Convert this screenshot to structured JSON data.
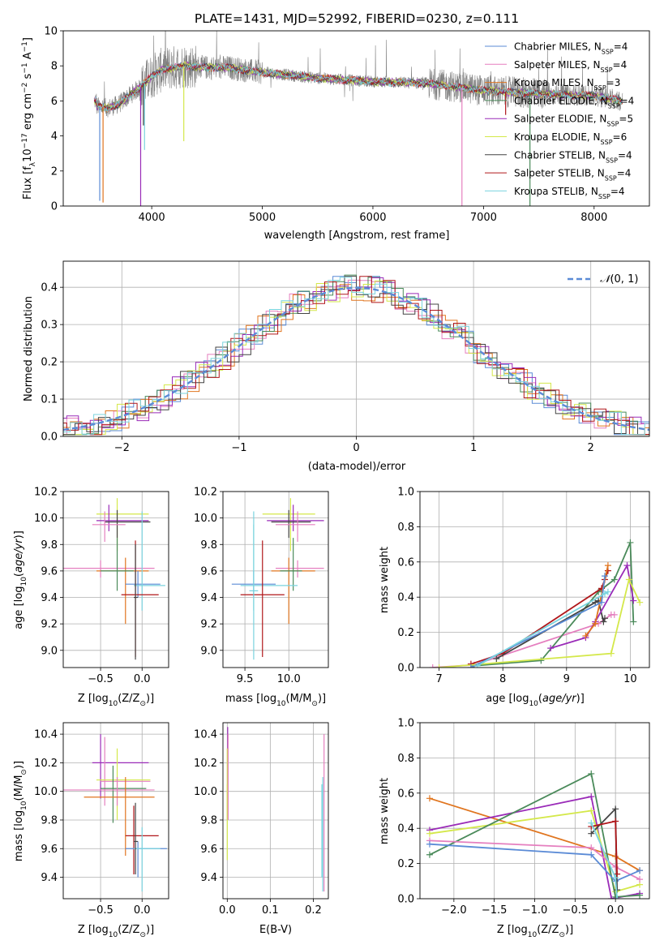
{
  "title": "PLATE=1431, MJD=52992, FIBERID=0230, z=0.111",
  "colors": {
    "chabrier_miles": "#5b8bd6",
    "salpeter_miles": "#e57fbf",
    "kroupa_miles": "#e0751f",
    "chabrier_elodie": "#4a8a5a",
    "salpeter_elodie": "#9a2bb8",
    "kroupa_elodie": "#d4e84a",
    "chabrier_stelib": "#444444",
    "salpeter_stelib": "#b0171a",
    "kroupa_stelib": "#79d3de"
  },
  "chart_data": [
    {
      "type": "line",
      "xlabel": "wavelength [Angstrom, rest frame]",
      "ylabel": "Flux [f_λ10^-17 erg cm^-2 s^-1 A^-1]",
      "xlim": [
        3200,
        8500
      ],
      "ylim": [
        0,
        10
      ],
      "xticks": [
        4000,
        5000,
        6000,
        7000,
        8000
      ],
      "yticks": [
        0,
        2,
        4,
        6,
        8,
        10
      ],
      "legend_position": "top-right",
      "legend": [
        "Chabrier MILES, NSSP=4",
        "Salpeter MILES, NSSP=4",
        "Kroupa MILES, NSSP=3",
        "Chabrier ELODIE, NSSP=4",
        "Salpeter ELODIE, NSSP=5",
        "Kroupa ELODIE, NSSP=6",
        "Chabrier STELIB, NSSP=4",
        "Salpeter STELIB, NSSP=4",
        "Kroupa STELIB, NSSP=4"
      ],
      "spectrum_continuum": {
        "x": [
          3500,
          3600,
          3700,
          3800,
          3900,
          4000,
          4100,
          4300,
          4500,
          4700,
          4900,
          5200,
          5500,
          6000,
          6500,
          7000,
          7500,
          8000,
          8250
        ],
        "y": [
          5.7,
          5.6,
          5.8,
          6.3,
          6.8,
          7.4,
          7.8,
          8.0,
          7.9,
          7.9,
          7.7,
          7.5,
          7.3,
          7.1,
          7.0,
          6.6,
          6.4,
          6.3,
          6.0
        ]
      }
    },
    {
      "type": "line",
      "xlabel": "(data-model)/error",
      "ylabel": "Normed distribution",
      "xlim": [
        -2.5,
        2.5
      ],
      "ylim": [
        0,
        0.47
      ],
      "xticks": [
        -2,
        -1,
        0,
        1,
        2
      ],
      "yticks": [
        0.0,
        0.1,
        0.2,
        0.3,
        0.4
      ],
      "legend": [
        "𝒩(0, 1)"
      ],
      "legend_position": "top-right",
      "grid": true
    },
    {
      "type": "scatter",
      "xlabel": "Z [log10(Z/Z☉)]",
      "ylabel": "age  [log10(age/yr)]",
      "xlim": [
        -0.95,
        0.32
      ],
      "ylim": [
        8.87,
        10.2
      ],
      "xticks": [
        -0.5,
        0.0
      ],
      "yticks": [
        9.0,
        9.2,
        9.4,
        9.6,
        9.8,
        10.0,
        10.2
      ],
      "grid": true
    },
    {
      "type": "scatter",
      "xlabel": "mass [log10(M/M☉)]",
      "xlim": [
        9.25,
        10.45
      ],
      "ylim": [
        8.87,
        10.2
      ],
      "xticks": [
        9.5,
        10.0
      ],
      "yticks": [
        9.0,
        9.2,
        9.4,
        9.6,
        9.8,
        10.0,
        10.2
      ],
      "grid": true
    },
    {
      "type": "line",
      "xlabel": "age  [log10(age/yr)]",
      "ylabel": "mass weight",
      "xlim": [
        6.7,
        10.3
      ],
      "ylim": [
        0,
        1
      ],
      "xticks": [
        7,
        8,
        9,
        10
      ],
      "yticks": [
        0.0,
        0.2,
        0.4,
        0.6,
        0.8,
        1.0
      ],
      "grid": true
    },
    {
      "type": "scatter",
      "xlabel": "Z [log10(Z/Z☉)]",
      "ylabel": "mass [log10(M/M☉)]",
      "xlim": [
        -0.95,
        0.32
      ],
      "ylim": [
        9.25,
        10.48
      ],
      "xticks": [
        -0.5,
        0.0
      ],
      "yticks": [
        9.4,
        9.6,
        9.8,
        10.0,
        10.2,
        10.4
      ],
      "grid": true
    },
    {
      "type": "scatter",
      "xlabel": "E(B-V)",
      "xlim": [
        -0.01,
        0.235
      ],
      "ylim": [
        9.25,
        10.48
      ],
      "xticks": [
        0.0,
        0.1,
        0.2
      ],
      "yticks": [
        9.4,
        9.6,
        9.8,
        10.0,
        10.2,
        10.4
      ],
      "grid": true
    },
    {
      "type": "line",
      "xlabel": "Z [log10(Z/Z☉)]",
      "ylabel": "mass weight",
      "xlim": [
        -2.42,
        0.42
      ],
      "ylim": [
        0,
        1
      ],
      "xticks": [
        -2.0,
        -1.5,
        -1.0,
        -0.5,
        0.0
      ],
      "yticks": [
        0.0,
        0.2,
        0.4,
        0.6,
        0.8,
        1.0
      ],
      "grid": true
    }
  ],
  "labels": {
    "p1_xlabel": "wavelength [Angstrom, rest frame]",
    "p2_xlabel": "(data-model)/error",
    "p2_ylabel": "Normed distribution",
    "p5_ylabel": "mass weight",
    "p8_ylabel": "mass weight",
    "p3_xlabel_pre": "Z [log",
    "p3_xlabel_mid": "(Z/Z",
    "p3_xlabel_post": ")]",
    "p4_xlabel_pre": "mass [log",
    "p4_xlabel_mid": "(M/M",
    "p4_xlabel_post": ")]",
    "p5_xlabel_pre": "age  [log",
    "p5_xlabel_mid": "(age/yr)]",
    "p7_xlabel": "E(B-V)"
  }
}
